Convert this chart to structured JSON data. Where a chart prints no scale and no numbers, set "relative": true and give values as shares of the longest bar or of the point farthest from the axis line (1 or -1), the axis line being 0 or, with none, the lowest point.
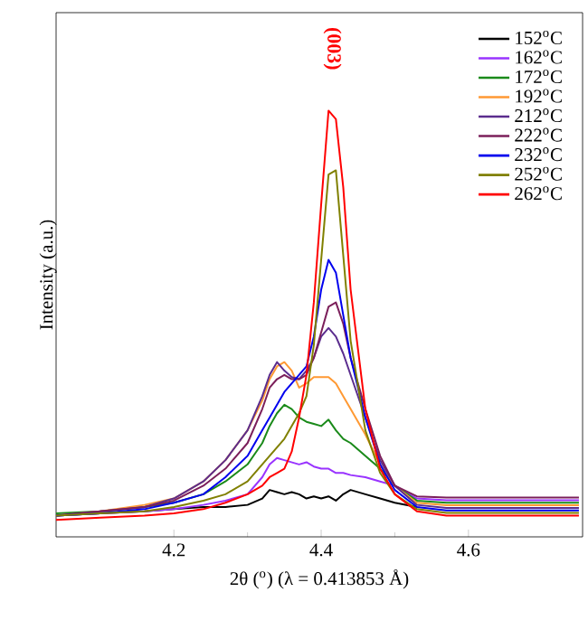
{
  "chart_data": {
    "type": "line",
    "relative": true,
    "xlabel": "2θ ($^{o}$) (λ = 0.413853 Å)",
    "ylabel": "Intensity (a.u.)",
    "annotations": [
      "(003)"
    ],
    "x": [
      4.04,
      4.1,
      4.16,
      4.2,
      4.24,
      4.27,
      4.3,
      4.32,
      4.33,
      4.34,
      4.35,
      4.36,
      4.37,
      4.38,
      4.39,
      4.4,
      4.41,
      4.42,
      4.43,
      4.44,
      4.46,
      4.48,
      4.5,
      4.53,
      4.57,
      4.62,
      4.68,
      4.75
    ],
    "xlim": [
      4.04,
      4.755
    ],
    "xticks": [
      4.2,
      4.4,
      4.6
    ],
    "legend": "top right",
    "line_style": "solid",
    "marker": "none",
    "series": [
      {
        "name": "152$^{o}$C",
        "color": "#000000",
        "values": [
          0.05,
          0.055,
          0.06,
          0.065,
          0.07,
          0.07,
          0.075,
          0.09,
          0.11,
          0.105,
          0.1,
          0.105,
          0.1,
          0.09,
          0.095,
          0.09,
          0.095,
          0.085,
          0.1,
          0.11,
          0.1,
          0.09,
          0.08,
          0.07,
          null,
          null,
          null,
          null
        ]
      },
      {
        "name": "162$^{o}$C",
        "color": "#9933ff",
        "values": [
          0.05,
          0.055,
          0.06,
          0.065,
          0.075,
          0.085,
          0.1,
          0.14,
          0.17,
          0.185,
          0.18,
          0.175,
          0.17,
          0.175,
          0.165,
          0.16,
          0.16,
          0.15,
          0.15,
          0.145,
          0.14,
          0.13,
          0.12,
          0.09,
          0.086,
          0.086,
          0.086,
          0.086
        ]
      },
      {
        "name": "172$^{o}$C",
        "color": "#1a8a1a",
        "values": [
          0.055,
          0.06,
          0.07,
          0.08,
          0.1,
          0.13,
          0.17,
          0.22,
          0.26,
          0.29,
          0.31,
          0.3,
          0.28,
          0.27,
          0.265,
          0.26,
          0.275,
          0.25,
          0.23,
          0.22,
          0.19,
          0.16,
          0.12,
          0.085,
          0.08,
          0.08,
          0.08,
          0.08
        ]
      },
      {
        "name": "192$^{o}$C",
        "color": "#ff9933",
        "values": [
          0.05,
          0.06,
          0.075,
          0.09,
          0.13,
          0.18,
          0.25,
          0.32,
          0.37,
          0.4,
          0.41,
          0.39,
          0.35,
          0.36,
          0.375,
          0.375,
          0.375,
          0.36,
          0.33,
          0.3,
          0.24,
          0.17,
          0.12,
          0.08,
          0.074,
          0.074,
          0.074,
          0.074
        ]
      },
      {
        "name": "212$^{o}$C",
        "color": "#5b2d8e",
        "values": [
          0.05,
          0.06,
          0.07,
          0.09,
          0.13,
          0.18,
          0.25,
          0.33,
          0.38,
          0.41,
          0.39,
          0.375,
          0.37,
          0.39,
          0.42,
          0.47,
          0.49,
          0.47,
          0.43,
          0.38,
          0.28,
          0.18,
          0.12,
          0.075,
          0.068,
          0.068,
          0.068,
          0.068
        ]
      },
      {
        "name": "222$^{o}$C",
        "color": "#7b1f5a",
        "values": [
          0.05,
          0.06,
          0.07,
          0.085,
          0.12,
          0.16,
          0.22,
          0.3,
          0.35,
          0.37,
          0.38,
          0.37,
          0.37,
          0.38,
          0.42,
          0.48,
          0.54,
          0.55,
          0.5,
          0.42,
          0.3,
          0.19,
          0.12,
          0.095,
          0.092,
          0.092,
          0.092,
          0.092
        ]
      },
      {
        "name": "232$^{o}$C",
        "color": "#0000ee",
        "values": [
          0.05,
          0.055,
          0.065,
          0.08,
          0.1,
          0.14,
          0.19,
          0.25,
          0.28,
          0.31,
          0.34,
          0.36,
          0.38,
          0.4,
          0.47,
          0.58,
          0.65,
          0.62,
          0.52,
          0.42,
          0.28,
          0.17,
          0.11,
          0.07,
          0.062,
          0.062,
          0.062,
          0.062
        ]
      },
      {
        "name": "252$^{o}$C",
        "color": "#808000",
        "values": [
          0.05,
          0.055,
          0.06,
          0.07,
          0.085,
          0.1,
          0.13,
          0.17,
          0.19,
          0.21,
          0.23,
          0.26,
          0.29,
          0.33,
          0.45,
          0.65,
          0.85,
          0.86,
          0.66,
          0.46,
          0.25,
          0.15,
          0.1,
          0.065,
          0.056,
          0.056,
          0.056,
          0.056
        ]
      },
      {
        "name": "262$^{o}$C",
        "color": "#ff0000",
        "values": [
          0.04,
          0.045,
          0.05,
          0.055,
          0.065,
          0.08,
          0.1,
          0.12,
          0.14,
          0.15,
          0.16,
          0.2,
          0.28,
          0.38,
          0.55,
          0.78,
          1.0,
          0.98,
          0.82,
          0.58,
          0.3,
          0.16,
          0.1,
          0.06,
          0.05,
          0.05,
          0.05,
          0.05
        ]
      }
    ]
  }
}
